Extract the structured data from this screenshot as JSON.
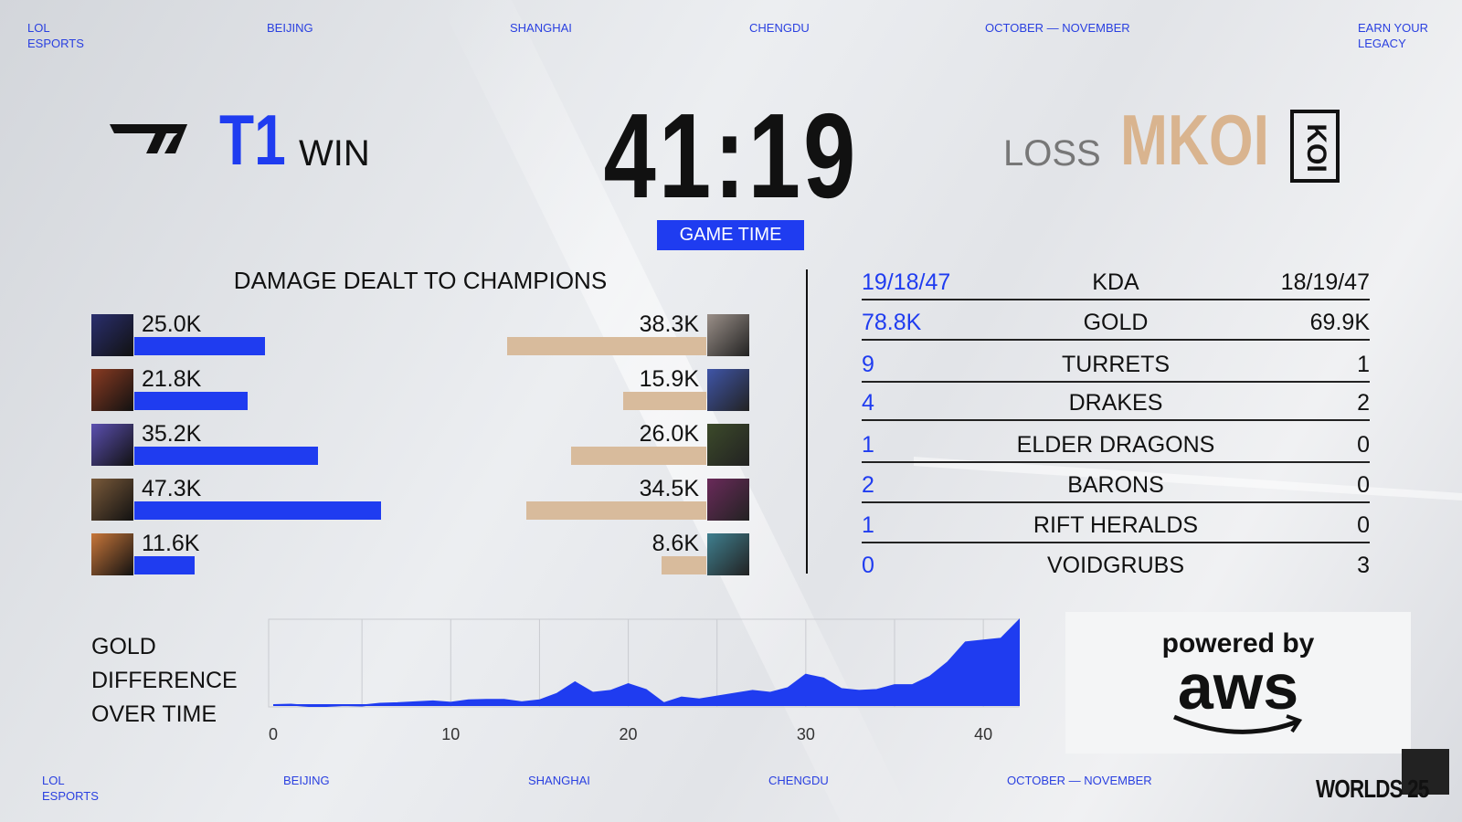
{
  "header": {
    "items": [
      "LOL\nESPORTS",
      "BEIJING",
      "SHANGHAI",
      "CHENGDU",
      "OCTOBER — NOVEMBER",
      "EARN YOUR\nLEGACY"
    ]
  },
  "match": {
    "team1": {
      "name": "T1",
      "result": "WIN"
    },
    "time": "41:19",
    "time_label": "GAME TIME",
    "team2": {
      "name": "MKOI",
      "result": "LOSS"
    }
  },
  "chart_data": [
    {
      "type": "bar",
      "title": "DAMAGE DEALT TO CHAMPIONS",
      "categories": [
        null,
        null,
        null,
        null,
        null
      ],
      "series": [
        {
          "color": "#1f3cf0",
          "values": [
            25000,
            21800,
            35200,
            47300,
            11600
          ],
          "value_labels": [
            "25.0K",
            "21.8K",
            "35.2K",
            "47.3K",
            "11.6K"
          ]
        },
        {
          "color": "#d8bb9c",
          "values": [
            38300,
            15900,
            26000,
            34500,
            8600
          ],
          "value_labels": [
            "38.3K",
            "15.9K",
            "26.0K",
            "34.5K",
            "8.6K"
          ]
        }
      ]
    },
    {
      "type": "area",
      "title": "GOLD\nDIFFERENCE\nOVER TIME",
      "x": [
        0,
        1,
        2,
        3,
        4,
        5,
        6,
        7,
        8,
        9,
        10,
        11,
        12,
        13,
        14,
        15,
        16,
        17,
        18,
        19,
        20,
        21,
        22,
        23,
        24,
        25,
        26,
        27,
        28,
        29,
        30,
        31,
        32,
        33,
        34,
        35,
        36,
        37,
        38,
        39,
        40,
        41,
        42
      ],
      "series": [
        {
          "color": "#1f3cf0",
          "values": [
            0,
            50,
            -100,
            -100,
            0,
            -50,
            150,
            200,
            300,
            400,
            250,
            500,
            550,
            550,
            300,
            500,
            1200,
            2400,
            1300,
            1500,
            2200,
            1600,
            200,
            800,
            600,
            900,
            1200,
            1500,
            1300,
            1800,
            3200,
            2800,
            1700,
            1500,
            1600,
            2100,
            2100,
            3000,
            4500,
            6600,
            6800,
            7000,
            8900
          ]
        }
      ],
      "xlim": [
        0,
        42
      ],
      "xticks": [
        0,
        10,
        20,
        30,
        40
      ],
      "xminorticks": [
        5,
        15,
        25,
        35
      ],
      "grid": true
    }
  ],
  "stats": {
    "rows": [
      [
        "19/18/47",
        "KDA",
        "18/19/47"
      ],
      [
        "78.8K",
        "GOLD",
        "69.9K"
      ],
      [
        "9",
        "TURRETS",
        "1"
      ],
      [
        "4",
        "DRAKES",
        "2"
      ],
      [
        "1",
        "ELDER DRAGONS",
        "0"
      ],
      [
        "2",
        "BARONS",
        "0"
      ],
      [
        "1",
        "RIFT HERALDS",
        "0"
      ],
      [
        "0",
        "VOIDGRUBS",
        "3"
      ]
    ]
  },
  "sponsor": {
    "line1": "powered by",
    "line2": "aws"
  },
  "footer": {
    "items": [
      "LOL\nESPORTS",
      "BEIJING",
      "SHANGHAI",
      "CHENGDU",
      "OCTOBER — NOVEMBER"
    ],
    "event": "WORLDS 25"
  }
}
